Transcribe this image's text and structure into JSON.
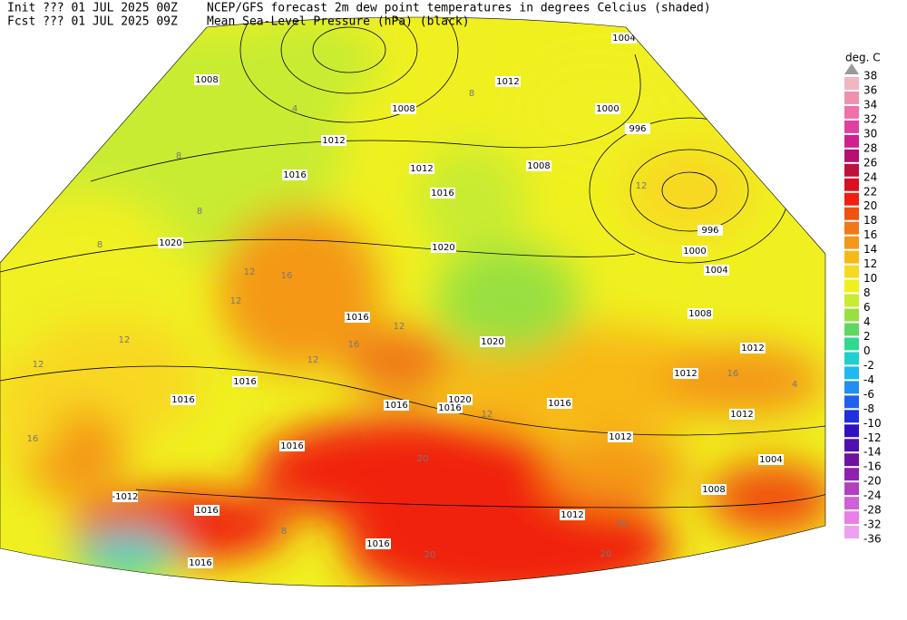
{
  "header": {
    "init": "Init  ??? 01 JUL 2025 00Z",
    "fcst": "Fcst ??? 01 JUL 2025 09Z",
    "title": "NCEP/GFS forecast 2m dew point temperatures in degrees Celcius (shaded)",
    "subtitle": "Mean Sea-Level Pressure (hPa) (black)"
  },
  "legend": {
    "unit": "deg. C",
    "levels": [
      38,
      36,
      34,
      32,
      30,
      28,
      26,
      24,
      22,
      20,
      18,
      16,
      14,
      12,
      10,
      8,
      6,
      4,
      2,
      0,
      -2,
      -4,
      -6,
      -8,
      -10,
      -12,
      -14,
      -16,
      -20,
      -24,
      -28,
      -32,
      -36
    ],
    "colors": [
      "#f4b4c0",
      "#f090b0",
      "#f070a8",
      "#e040a0",
      "#d02090",
      "#b81070",
      "#c0103c",
      "#d81020",
      "#f02010",
      "#f05010",
      "#f07818",
      "#f49818",
      "#f8b818",
      "#f8d820",
      "#f0f020",
      "#c8ec30",
      "#98e040",
      "#60d860",
      "#30d890",
      "#20d0d0",
      "#20b8f0",
      "#2090f0",
      "#2060f0",
      "#2030e0",
      "#3010c0",
      "#5010b0",
      "#7010a0",
      "#9020b0",
      "#b040c0",
      "#d060d8",
      "#e880e8",
      "#f0a0f0"
    ]
  },
  "map": {
    "isobar_labels": [
      "1004",
      "1012",
      "1008",
      "1000",
      "996",
      "1012",
      "1016",
      "1012",
      "1008",
      "1016",
      "1020",
      "1020",
      "996",
      "1000",
      "1004",
      "1016",
      "1008",
      "1020",
      "1012",
      "1012",
      "1016",
      "1016",
      "1016",
      "1020",
      "1016",
      "1016",
      "1012",
      "1012",
      "1016",
      "1004",
      "1008",
      "-1012",
      "1016",
      "1012",
      "1016",
      "1016",
      "1008"
    ],
    "dewpoint_labels": [
      "8",
      "4",
      "8",
      "8",
      "8",
      "12",
      "12",
      "16",
      "12",
      "12",
      "12",
      "12",
      "16",
      "12",
      "16",
      "20",
      "20",
      "20",
      "20",
      "16",
      "12",
      "8",
      "4"
    ]
  }
}
